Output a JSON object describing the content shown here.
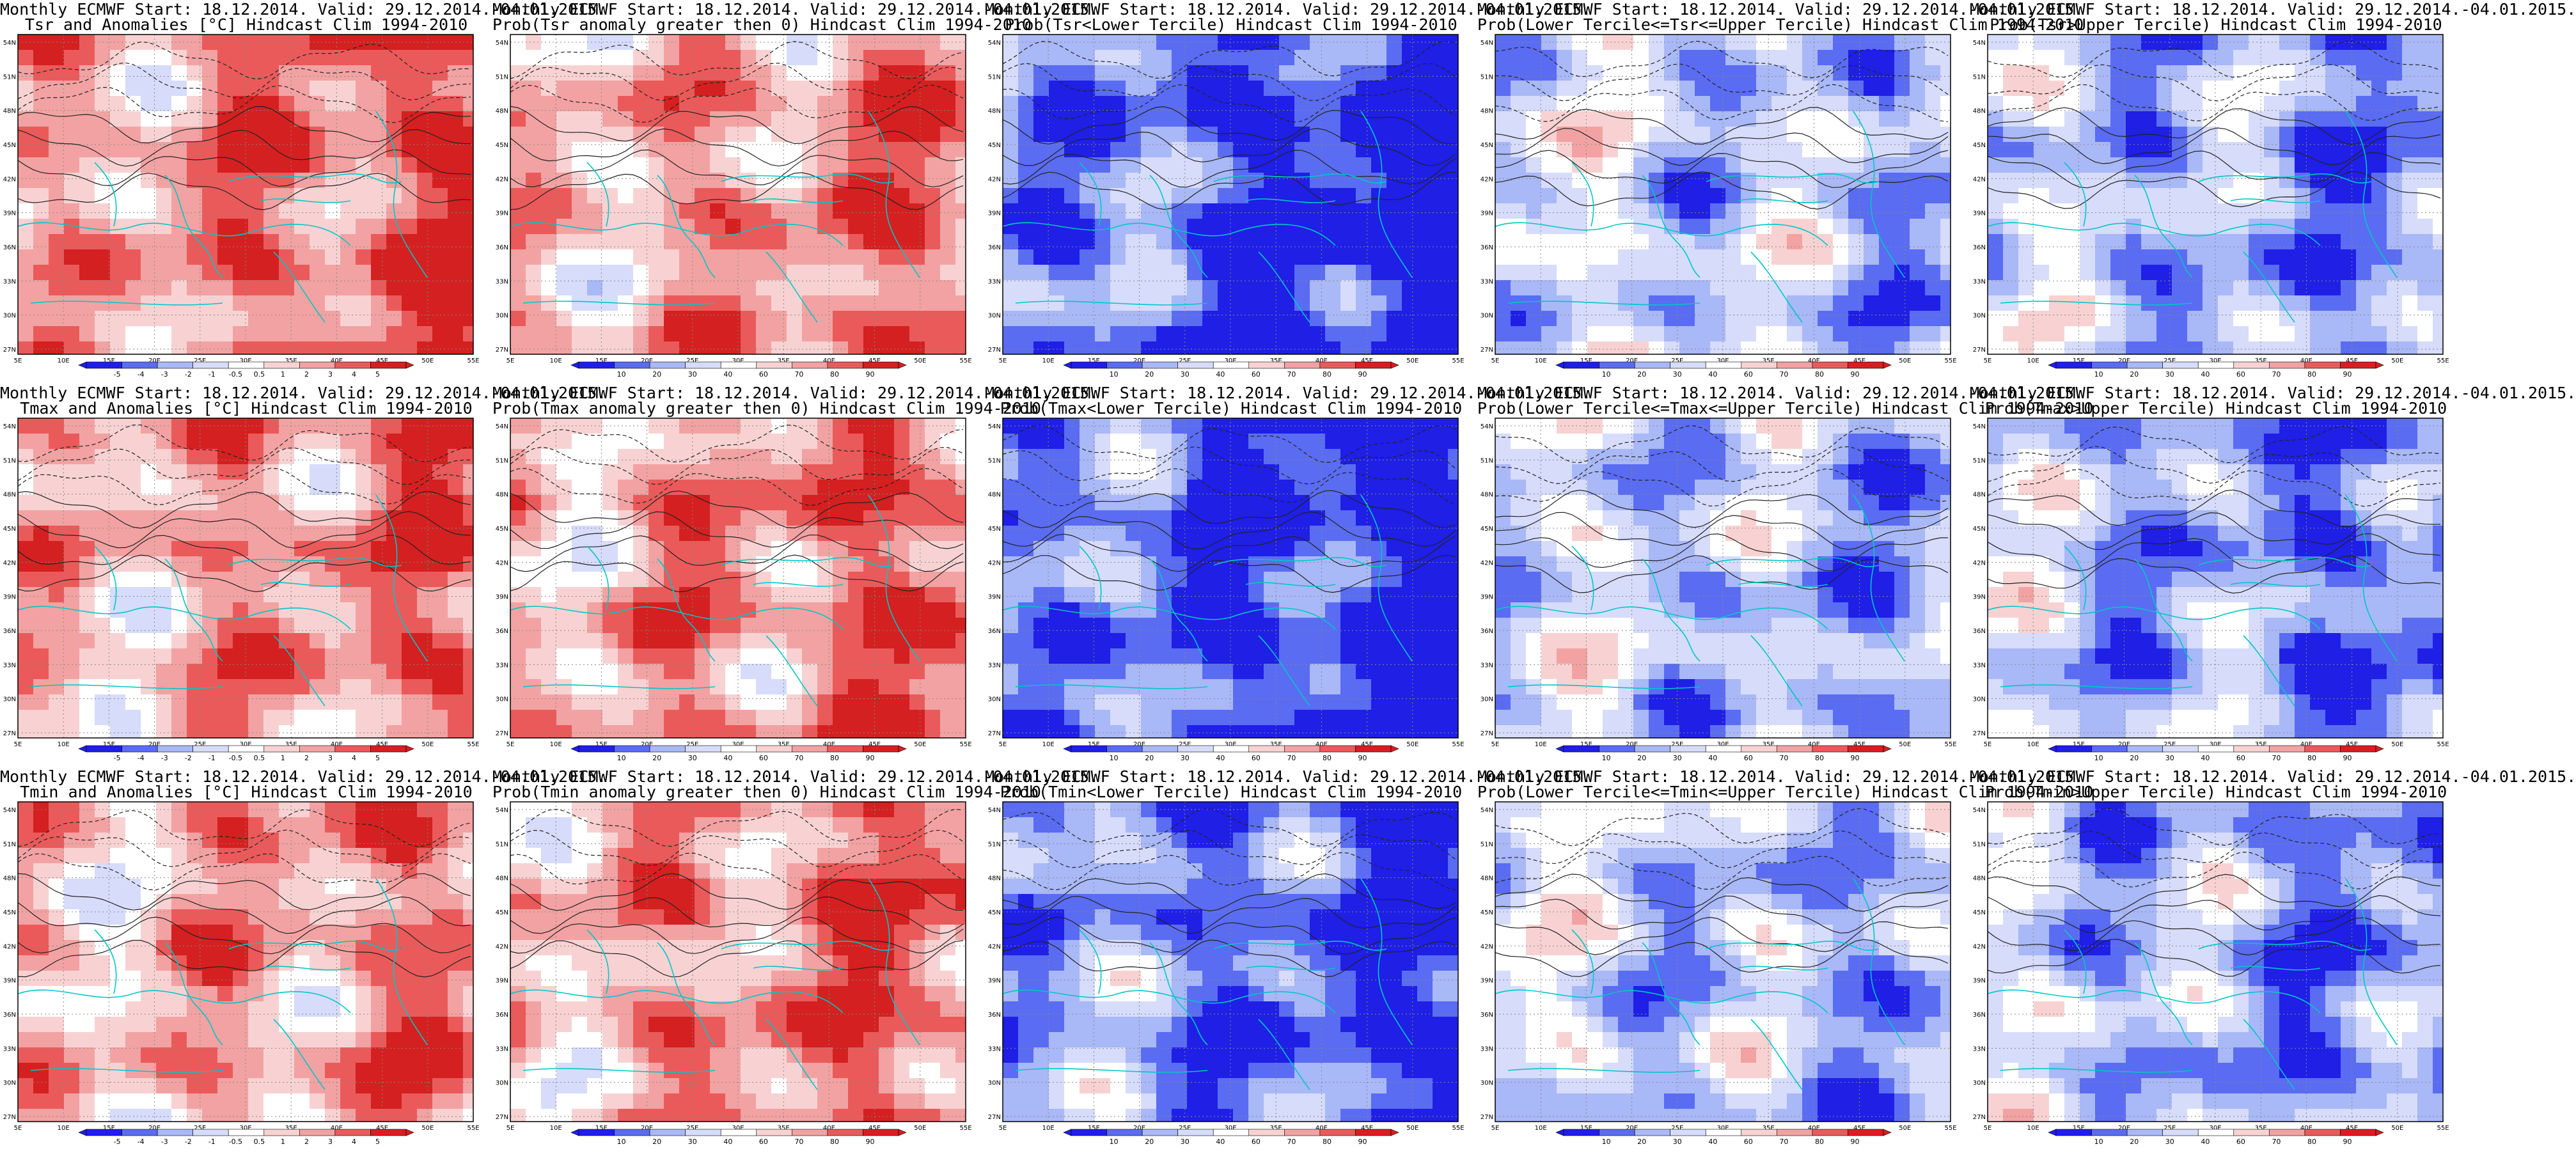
{
  "colors": {
    "strong_blue": "#1f1fe6",
    "mid_blue": "#5a6cf2",
    "light_blue": "#a9b8f6",
    "pale_blue": "#d6dcfa",
    "white": "#ffffff",
    "pale_red": "#f8d2d2",
    "light_red": "#f2a2a2",
    "mid_red": "#ea5a5a",
    "strong_red": "#d42020",
    "coastline": "#00c8c8",
    "contour": "#222222"
  },
  "axes": {
    "lat_labels": [
      "54N",
      "51N",
      "48N",
      "45N",
      "42N",
      "39N",
      "36N",
      "33N",
      "30N",
      "27N"
    ],
    "lon_labels": [
      "5E",
      "10E",
      "15E",
      "20E",
      "25E",
      "30E",
      "35E",
      "40E",
      "45E",
      "50E",
      "55E"
    ]
  },
  "colorbars": {
    "anomaly": [
      "-5",
      "-4",
      "-3",
      "-2",
      "-1",
      "-0.5",
      "0.5",
      "1",
      "2",
      "3",
      "4",
      "5"
    ],
    "prob": [
      "10",
      "20",
      "30",
      "40",
      "60",
      "70",
      "80",
      "90"
    ]
  },
  "panels": [
    {
      "line1": "Monthly ECMWF Start: 18.12.2014. Valid: 29.12.2014.-04.01.2015.",
      "line2": "Tsr and Anomalies [°C] Hindcast Clim 1994-2010",
      "kind": "anomaly",
      "bias": 0.55
    },
    {
      "line1": "Monthly ECMWF Start: 18.12.2014. Valid: 29.12.2014.-04.01.2015.",
      "line2": "Prob(Tsr anomaly greater then 0) Hindcast Clim 1994-2010",
      "kind": "prob",
      "bias": 0.45
    },
    {
      "line1": "Monthly ECMWF Start: 18.12.2014. Valid: 29.12.2014.-04.01.2015.",
      "line2": "Prob(Tsr<Lower Tercile) Hindcast Clim 1994-2010",
      "kind": "prob",
      "bias": -0.8
    },
    {
      "line1": "Monthly ECMWF Start: 18.12.2014. Valid: 29.12.2014.-04.01.2015.",
      "line2": "Prob(Lower Tercile<=Tsr<=Upper Tercile) Hindcast Clim 1994-2010",
      "kind": "prob",
      "bias": -0.3
    },
    {
      "line1": "Monthly ECMWF Start: 18.12.2014. Valid: 29.12.2014.-04.01.2015.",
      "line2": "Prob(Tsr>Upper Tercile) Hindcast Clim 1994-2010",
      "kind": "prob",
      "bias": -0.45
    },
    {
      "line1": "Monthly ECMWF Start: 18.12.2014. Valid: 29.12.2014.-04.01.2015.",
      "line2": "Tmax and Anomalies [°C] Hindcast Clim 1994-2010",
      "kind": "anomaly",
      "bias": 0.45
    },
    {
      "line1": "Monthly ECMWF Start: 18.12.2014. Valid: 29.12.2014.-04.01.2015.",
      "line2": "Prob(Tmax anomaly greater then 0) Hindcast Clim 1994-2010",
      "kind": "prob",
      "bias": 0.5
    },
    {
      "line1": "Monthly ECMWF Start: 18.12.2014. Valid: 29.12.2014.-04.01.2015.",
      "line2": "Prob(Tmax<Lower Tercile) Hindcast Clim 1994-2010",
      "kind": "prob",
      "bias": -0.8
    },
    {
      "line1": "Monthly ECMWF Start: 18.12.2014. Valid: 29.12.2014.-04.01.2015.",
      "line2": "Prob(Lower Tercile<=Tmax<=Upper Tercile) Hindcast Clim 1994-2010",
      "kind": "prob",
      "bias": -0.35
    },
    {
      "line1": "Monthly ECMWF Start: 18.12.2014. Valid: 29.12.2014.-04.01.2015.",
      "line2": "Prob(Tmax>Upper Tercile) Hindcast Clim 1994-2010",
      "kind": "prob",
      "bias": -0.5
    },
    {
      "line1": "Monthly ECMWF Start: 18.12.2014. Valid: 29.12.2014.-04.01.2015.",
      "line2": "Tmin and Anomalies [°C] Hindcast Clim 1994-2010",
      "kind": "anomaly",
      "bias": 0.4
    },
    {
      "line1": "Monthly ECMWF Start: 18.12.2014. Valid: 29.12.2014.-04.01.2015.",
      "line2": "Prob(Tmin anomaly greater then 0) Hindcast Clim 1994-2010",
      "kind": "prob",
      "bias": 0.5
    },
    {
      "line1": "Monthly ECMWF Start: 18.12.2014. Valid: 29.12.2014.-04.01.2015.",
      "line2": "Prob(Tmin<Lower Tercile) Hindcast Clim 1994-2010",
      "kind": "prob",
      "bias": -0.65
    },
    {
      "line1": "Monthly ECMWF Start: 18.12.2014. Valid: 29.12.2014.-04.01.2015.",
      "line2": "Prob(Lower Tercile<=Tmin<=Upper Tercile) Hindcast Clim 1994-2010",
      "kind": "prob",
      "bias": -0.35
    },
    {
      "line1": "Monthly ECMWF Start: 18.12.2014. Valid: 29.12.2014.-04.01.2015.",
      "line2": "Prob(Tmin>Upper Tercile) Hindcast Clim 1994-2010",
      "kind": "prob",
      "bias": -0.45
    }
  ]
}
